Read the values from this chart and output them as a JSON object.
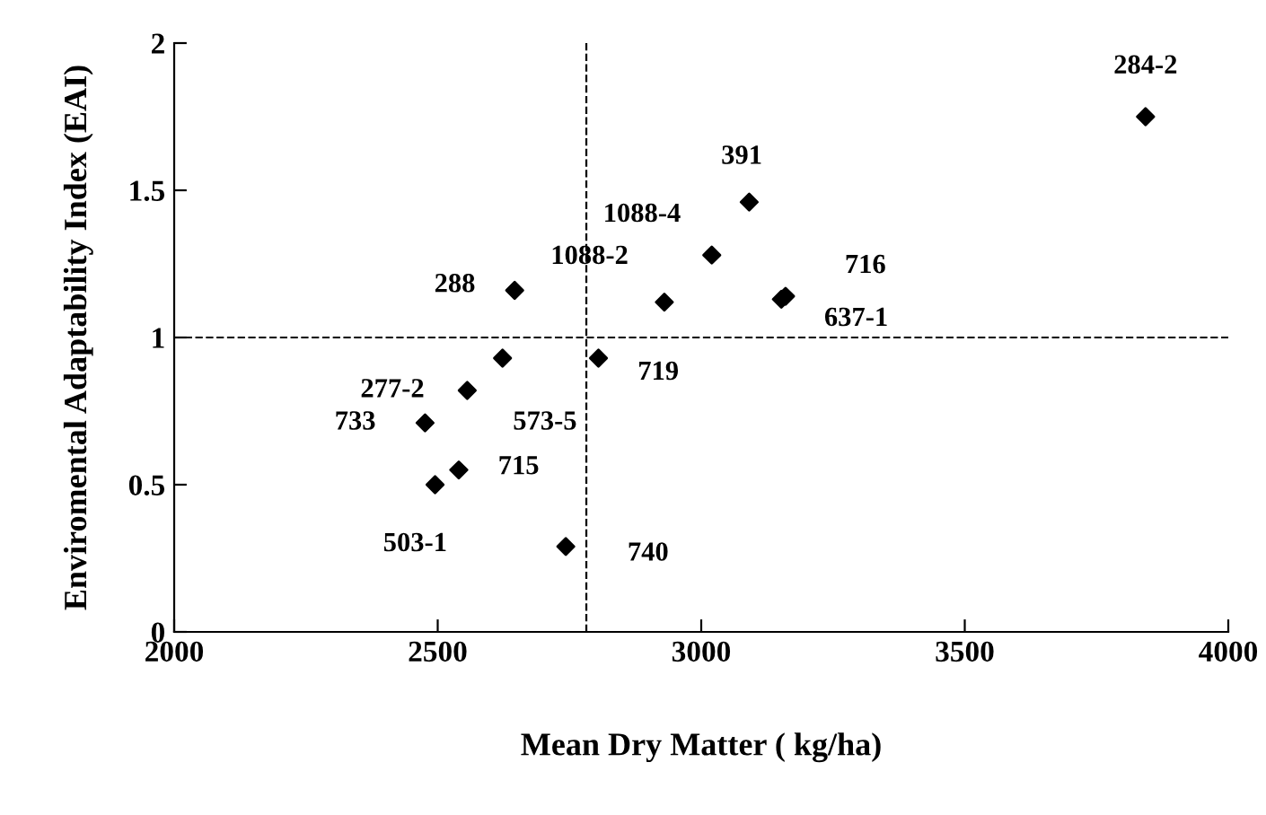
{
  "chart_data": {
    "type": "scatter",
    "xlabel": "Mean Dry Matter ( kg/ha)",
    "ylabel": "Enviromental Adaptability Index (EAI)",
    "x": [
      3843,
      3091,
      3020,
      2930,
      3160,
      3152,
      2646,
      2623,
      2805,
      2556,
      2476,
      2540,
      2495,
      2743
    ],
    "series": [
      {
        "color": "#000000",
        "values": [
          1.75,
          1.46,
          1.28,
          1.12,
          1.14,
          1.13,
          1.16,
          0.93,
          0.93,
          0.82,
          0.71,
          0.55,
          0.5,
          0.29
        ]
      }
    ],
    "marker": "diamond",
    "grid": false,
    "xlim": [
      2000,
      4000
    ],
    "xticks": [
      2000,
      2500,
      3000,
      3500,
      4000
    ],
    "ylim": [
      0,
      2
    ],
    "yticks": [
      0,
      0.5,
      1,
      1.5,
      2
    ],
    "ref_lines": [
      {
        "axis": "x",
        "value": 2782,
        "line_style": "dashed",
        "color": "#000000"
      },
      {
        "axis": "y",
        "value": 1,
        "line_style": "dashed",
        "color": "#000000"
      }
    ],
    "annotations": [
      {
        "text": "284-2",
        "x": 3843,
        "y": 1.75
      },
      {
        "text": "391",
        "x": 3091,
        "y": 1.46
      },
      {
        "text": "1088-4",
        "x": 3020,
        "y": 1.28
      },
      {
        "text": "1088-2",
        "x": 2930,
        "y": 1.12
      },
      {
        "text": "716",
        "x": 3160,
        "y": 1.14
      },
      {
        "text": "637-1",
        "x": 3152,
        "y": 1.13
      },
      {
        "text": "288",
        "x": 2646,
        "y": 1.16
      },
      {
        "text": "573-5",
        "x": 2623,
        "y": 0.93
      },
      {
        "text": "719",
        "x": 2805,
        "y": 0.93
      },
      {
        "text": "277-2",
        "x": 2556,
        "y": 0.82
      },
      {
        "text": "733",
        "x": 2476,
        "y": 0.71
      },
      {
        "text": "715",
        "x": 2540,
        "y": 0.55
      },
      {
        "text": "503-1",
        "x": 2495,
        "y": 0.5
      },
      {
        "text": "740",
        "x": 2743,
        "y": 0.29
      }
    ]
  }
}
